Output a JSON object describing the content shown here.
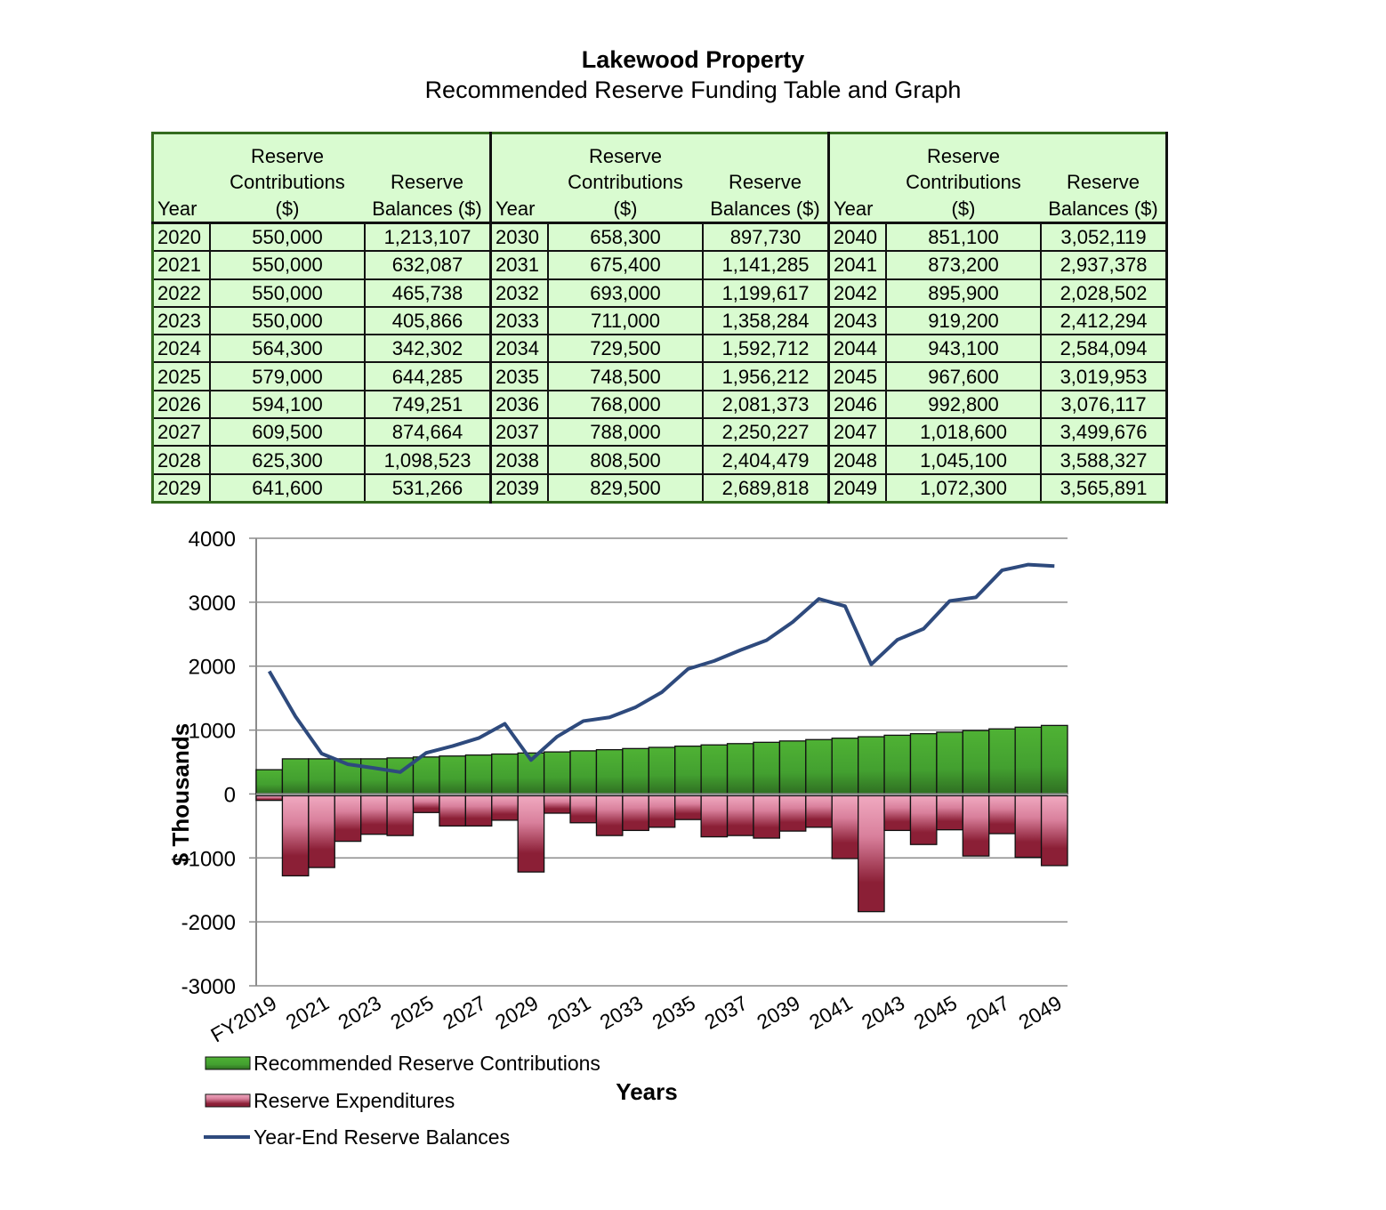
{
  "header": {
    "title": "Lakewood Property",
    "subtitle": "Recommended Reserve Funding Table and Graph"
  },
  "table": {
    "columns": [
      "Year",
      "Reserve Contributions ($)",
      "Reserve Balances ($)"
    ],
    "rows": [
      [
        "2020",
        "550,000",
        "1,213,107"
      ],
      [
        "2021",
        "550,000",
        "632,087"
      ],
      [
        "2022",
        "550,000",
        "465,738"
      ],
      [
        "2023",
        "550,000",
        "405,866"
      ],
      [
        "2024",
        "564,300",
        "342,302"
      ],
      [
        "2025",
        "579,000",
        "644,285"
      ],
      [
        "2026",
        "594,100",
        "749,251"
      ],
      [
        "2027",
        "609,500",
        "874,664"
      ],
      [
        "2028",
        "625,300",
        "1,098,523"
      ],
      [
        "2029",
        "641,600",
        "531,266"
      ],
      [
        "2030",
        "658,300",
        "897,730"
      ],
      [
        "2031",
        "675,400",
        "1,141,285"
      ],
      [
        "2032",
        "693,000",
        "1,199,617"
      ],
      [
        "2033",
        "711,000",
        "1,358,284"
      ],
      [
        "2034",
        "729,500",
        "1,592,712"
      ],
      [
        "2035",
        "748,500",
        "1,956,212"
      ],
      [
        "2036",
        "768,000",
        "2,081,373"
      ],
      [
        "2037",
        "788,000",
        "2,250,227"
      ],
      [
        "2038",
        "808,500",
        "2,404,479"
      ],
      [
        "2039",
        "829,500",
        "2,689,818"
      ],
      [
        "2040",
        "851,100",
        "3,052,119"
      ],
      [
        "2041",
        "873,200",
        "2,937,378"
      ],
      [
        "2042",
        "895,900",
        "2,028,502"
      ],
      [
        "2043",
        "919,200",
        "2,412,294"
      ],
      [
        "2044",
        "943,100",
        "2,584,094"
      ],
      [
        "2045",
        "967,600",
        "3,019,953"
      ],
      [
        "2046",
        "992,800",
        "3,076,117"
      ],
      [
        "2047",
        "1,018,600",
        "3,499,676"
      ],
      [
        "2048",
        "1,045,100",
        "3,588,327"
      ],
      [
        "2049",
        "1,072,300",
        "3,565,891"
      ]
    ]
  },
  "chart_data": {
    "type": "bar",
    "xlabel": "Years",
    "ylabel": "$ Thousands",
    "ylim": [
      -3000,
      4000
    ],
    "yticks": [
      "4000",
      "3000",
      "2000",
      "1000",
      "0",
      "-1000",
      "-2000",
      "-3000"
    ],
    "grid": true,
    "legend_placement": "bottom-left",
    "categories": [
      "FY2019",
      "2020",
      "2021",
      "2022",
      "2023",
      "2024",
      "2025",
      "2026",
      "2027",
      "2028",
      "2029",
      "2030",
      "2031",
      "2032",
      "2033",
      "2034",
      "2035",
      "2036",
      "2037",
      "2038",
      "2039",
      "2040",
      "2041",
      "2042",
      "2043",
      "2044",
      "2045",
      "2046",
      "2047",
      "2048",
      "2049"
    ],
    "xtick_labels": [
      "FY2019",
      "2021",
      "2023",
      "2025",
      "2027",
      "2029",
      "2031",
      "2033",
      "2035",
      "2037",
      "2039",
      "2041",
      "2043",
      "2045",
      "2047",
      "2049"
    ],
    "series": [
      {
        "name": "Recommended Reserve Contributions",
        "type": "bar",
        "color": "#4aa832",
        "values": [
          380,
          550,
          550,
          550,
          550,
          564.3,
          579,
          594.1,
          609.5,
          625.3,
          641.6,
          658.3,
          675.4,
          693,
          711,
          729.5,
          748.5,
          768,
          788,
          808.5,
          829.5,
          851.1,
          873.2,
          895.9,
          919.2,
          943.1,
          967.6,
          992.8,
          1018.6,
          1045.1,
          1072.3
        ]
      },
      {
        "name": "Reserve Expenditures",
        "type": "bar",
        "color": "#a8294a",
        "values": [
          -100,
          -1280,
          -1150,
          -740,
          -630,
          -650,
          -290,
          -500,
          -500,
          -410,
          -1220,
          -300,
          -450,
          -650,
          -570,
          -520,
          -400,
          -670,
          -650,
          -690,
          -580,
          -520,
          -1010,
          -1840,
          -570,
          -790,
          -560,
          -970,
          -620,
          -990,
          -1120
        ]
      },
      {
        "name": "Year-End Reserve Balances",
        "type": "line",
        "color": "#2e4a7d",
        "values": [
          1920,
          1213.1,
          632.1,
          465.7,
          405.9,
          342.3,
          644.3,
          749.3,
          874.7,
          1098.5,
          531.3,
          897.7,
          1141.3,
          1199.6,
          1358.3,
          1592.7,
          1956.2,
          2081.4,
          2250.2,
          2404.5,
          2689.8,
          3052.1,
          2937.4,
          2028.5,
          2412.3,
          2584.1,
          3020,
          3076.1,
          3499.7,
          3588.3,
          3565.9
        ]
      }
    ]
  }
}
